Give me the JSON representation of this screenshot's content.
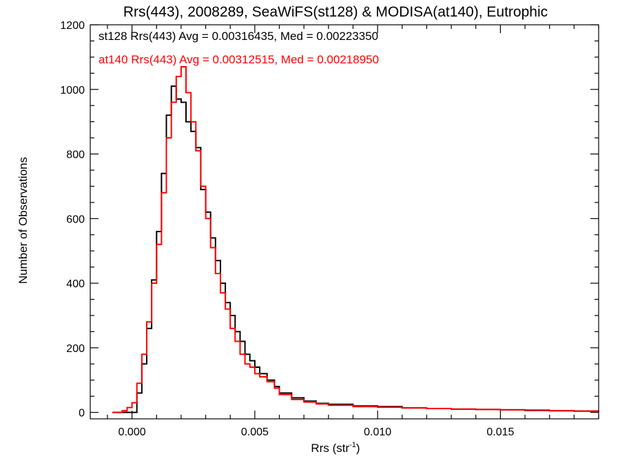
{
  "chart_data": {
    "type": "line",
    "title": "Rrs(443), 2008289, SeaWiFS(st128) & MODISA(at140), Eutrophic",
    "xlabel_main": "Rrs (str",
    "xlabel_sup": "-1",
    "xlabel_close": ")",
    "ylabel": "Number of Observations",
    "xlim": [
      -0.0017,
      0.019
    ],
    "ylim": [
      -20,
      1200
    ],
    "x_ticks": [
      0.0,
      0.005,
      0.01,
      0.015
    ],
    "x_tick_labels": [
      "0.000",
      "0.005",
      "0.010",
      "0.015"
    ],
    "y_ticks": [
      0,
      200,
      400,
      600,
      800,
      1000,
      1200
    ],
    "y_tick_labels": [
      "0",
      "200",
      "400",
      "600",
      "800",
      "1000",
      "1200"
    ],
    "legend_placement": "top-left",
    "series": [
      {
        "name": "st128",
        "color": "#000000",
        "annotation": "st128 Rrs(443) Avg = 0.00316435, Med = 0.00223350",
        "points": [
          [
            -0.0008,
            0
          ],
          [
            0.0,
            0
          ],
          [
            0.0002,
            60
          ],
          [
            0.0004,
            150
          ],
          [
            0.0006,
            260
          ],
          [
            0.0008,
            410
          ],
          [
            0.001,
            560
          ],
          [
            0.0012,
            740
          ],
          [
            0.0014,
            920
          ],
          [
            0.0016,
            1010
          ],
          [
            0.0018,
            970
          ],
          [
            0.002,
            960
          ],
          [
            0.0022,
            900
          ],
          [
            0.0024,
            870
          ],
          [
            0.0026,
            820
          ],
          [
            0.0028,
            690
          ],
          [
            0.003,
            620
          ],
          [
            0.0032,
            540
          ],
          [
            0.0034,
            470
          ],
          [
            0.0036,
            400
          ],
          [
            0.0038,
            340
          ],
          [
            0.004,
            300
          ],
          [
            0.0042,
            250
          ],
          [
            0.0044,
            220
          ],
          [
            0.0046,
            180
          ],
          [
            0.0048,
            160
          ],
          [
            0.005,
            140
          ],
          [
            0.0052,
            120
          ],
          [
            0.0055,
            100
          ],
          [
            0.0058,
            80
          ],
          [
            0.006,
            60
          ],
          [
            0.0065,
            45
          ],
          [
            0.007,
            35
          ],
          [
            0.0075,
            28
          ],
          [
            0.008,
            25
          ],
          [
            0.009,
            20
          ],
          [
            0.01,
            18
          ],
          [
            0.011,
            14
          ],
          [
            0.012,
            12
          ],
          [
            0.013,
            10
          ],
          [
            0.014,
            9
          ],
          [
            0.015,
            8
          ],
          [
            0.016,
            6
          ],
          [
            0.017,
            5
          ],
          [
            0.018,
            4
          ],
          [
            0.019,
            3
          ]
        ]
      },
      {
        "name": "at140",
        "color": "#ff0000",
        "annotation": "at140 Rrs(443) Avg = 0.00312515, Med = 0.00218950",
        "points": [
          [
            -0.0008,
            0
          ],
          [
            -0.0004,
            5
          ],
          [
            -0.0002,
            15
          ],
          [
            0.0,
            30
          ],
          [
            0.0002,
            90
          ],
          [
            0.0004,
            180
          ],
          [
            0.0006,
            280
          ],
          [
            0.0008,
            400
          ],
          [
            0.001,
            520
          ],
          [
            0.0012,
            680
          ],
          [
            0.0014,
            850
          ],
          [
            0.0016,
            960
          ],
          [
            0.0018,
            1040
          ],
          [
            0.002,
            1070
          ],
          [
            0.0022,
            990
          ],
          [
            0.0024,
            900
          ],
          [
            0.0026,
            810
          ],
          [
            0.0028,
            700
          ],
          [
            0.003,
            600
          ],
          [
            0.0032,
            510
          ],
          [
            0.0034,
            430
          ],
          [
            0.0036,
            370
          ],
          [
            0.0038,
            320
          ],
          [
            0.004,
            260
          ],
          [
            0.0042,
            220
          ],
          [
            0.0044,
            180
          ],
          [
            0.0046,
            150
          ],
          [
            0.0048,
            140
          ],
          [
            0.005,
            120
          ],
          [
            0.0052,
            110
          ],
          [
            0.0055,
            95
          ],
          [
            0.0058,
            75
          ],
          [
            0.006,
            55
          ],
          [
            0.0065,
            40
          ],
          [
            0.007,
            32
          ],
          [
            0.0075,
            26
          ],
          [
            0.008,
            22
          ],
          [
            0.009,
            18
          ],
          [
            0.01,
            16
          ],
          [
            0.011,
            14
          ],
          [
            0.012,
            12
          ],
          [
            0.013,
            10
          ],
          [
            0.014,
            9
          ],
          [
            0.015,
            8
          ],
          [
            0.016,
            7
          ],
          [
            0.017,
            5
          ],
          [
            0.018,
            4
          ],
          [
            0.019,
            3
          ]
        ]
      }
    ]
  }
}
